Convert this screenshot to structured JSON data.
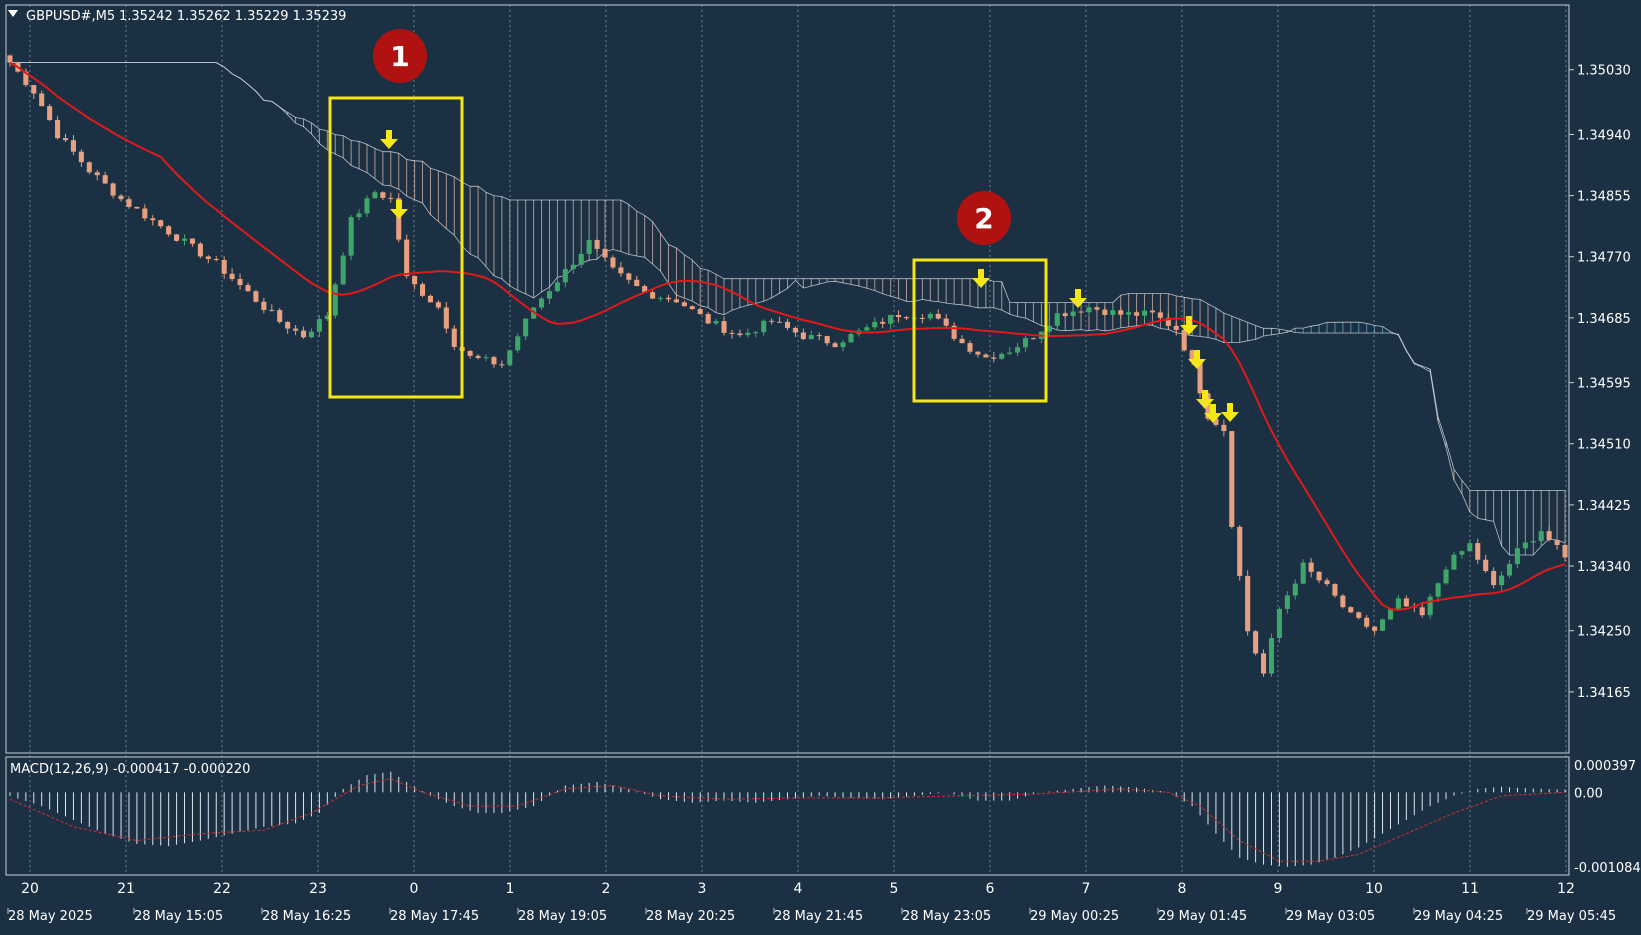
{
  "window": {
    "symbol_label": "GBPUSD#,M5",
    "ohlc_label": "1.35242 1.35262 1.35229 1.35239",
    "macd_label": "MACD(12,26,9) -0.000417 -0.000220"
  },
  "colors": {
    "background": "#1b3042",
    "bull_candle": "#3fa66b",
    "bear_candle": "#e8a080",
    "moving_average": "#e01a1a",
    "cloud_bear_hatch": "#e8c0b0",
    "cloud_bull_hatch": "#6ab0d8",
    "highlight_box": "#f5e616",
    "signal_arrow": "#f5e616",
    "callout_badge": "#b01212",
    "macd_signal": "#d03030",
    "grid": "#c8d0d8"
  },
  "annotations": {
    "badges": [
      "1",
      "2"
    ],
    "highlight_boxes": 2,
    "signal_arrows": 9
  },
  "chart_data": [
    {
      "type": "candlestick",
      "symbol": "GBPUSD#",
      "timeframe": "M5",
      "y_ticks": [
        1.3503,
        1.3494,
        1.34855,
        1.3477,
        1.34685,
        1.34595,
        1.3451,
        1.34425,
        1.3434,
        1.3425,
        1.34165
      ],
      "y_tick_labels": [
        "1.35030",
        "1.34940",
        "1.34855",
        "1.34770",
        "1.34685",
        "1.34595",
        "1.34510",
        "1.34425",
        "1.34340",
        "1.34250",
        "1.34165"
      ],
      "ylim": [
        1.3408,
        1.3512
      ],
      "hour_labels": [
        "20",
        "21",
        "22",
        "23",
        "0",
        "1",
        "2",
        "3",
        "4",
        "5",
        "6",
        "7",
        "8",
        "9",
        "10",
        "11",
        "12"
      ],
      "date_labels": [
        "28 May 2025",
        "28 May 15:05",
        "28 May 16:25",
        "28 May 17:45",
        "28 May 19:05",
        "28 May 20:25",
        "28 May 21:45",
        "28 May 23:05",
        "29 May 00:25",
        "29 May 01:45",
        "29 May 03:05",
        "29 May 04:25",
        "29 May 05:45"
      ],
      "close_path": [
        [
          0,
          1.3504
        ],
        [
          3,
          1.35
        ],
        [
          6,
          1.3494
        ],
        [
          10,
          1.3489
        ],
        [
          14,
          1.3485
        ],
        [
          18,
          1.3482
        ],
        [
          22,
          1.3479
        ],
        [
          26,
          1.3476
        ],
        [
          30,
          1.3472
        ],
        [
          34,
          1.3468
        ],
        [
          37,
          1.3466
        ],
        [
          40,
          1.3469
        ],
        [
          43,
          1.3482
        ],
        [
          46,
          1.3486
        ],
        [
          48,
          1.3485
        ],
        [
          50,
          1.3474
        ],
        [
          52,
          1.3472
        ],
        [
          54,
          1.347
        ],
        [
          56,
          1.3465
        ],
        [
          58,
          1.3463
        ],
        [
          62,
          1.3462
        ],
        [
          66,
          1.347
        ],
        [
          70,
          1.3475
        ],
        [
          73,
          1.3479
        ],
        [
          76,
          1.3475
        ],
        [
          80,
          1.3472
        ],
        [
          84,
          1.3471
        ],
        [
          88,
          1.3468
        ],
        [
          92,
          1.3466
        ],
        [
          96,
          1.3468
        ],
        [
          100,
          1.3466
        ],
        [
          104,
          1.3465
        ],
        [
          108,
          1.3467
        ],
        [
          112,
          1.3469
        ],
        [
          116,
          1.3469
        ],
        [
          120,
          1.3465
        ],
        [
          123,
          1.3463
        ],
        [
          126,
          1.3464
        ],
        [
          129,
          1.3466
        ],
        [
          132,
          1.3469
        ],
        [
          136,
          1.347
        ],
        [
          140,
          1.3469
        ],
        [
          144,
          1.3469
        ],
        [
          147,
          1.3467
        ],
        [
          149,
          1.3462
        ],
        [
          151,
          1.3455
        ],
        [
          153,
          1.3453
        ],
        [
          154,
          1.344
        ],
        [
          156,
          1.3425
        ],
        [
          158,
          1.3419
        ],
        [
          160,
          1.3428
        ],
        [
          163,
          1.3434
        ],
        [
          166,
          1.3431
        ],
        [
          169,
          1.3427
        ],
        [
          172,
          1.3425
        ],
        [
          175,
          1.3429
        ],
        [
          178,
          1.3427
        ],
        [
          181,
          1.3434
        ],
        [
          184,
          1.3437
        ],
        [
          187,
          1.3431
        ],
        [
          190,
          1.3436
        ],
        [
          193,
          1.3439
        ],
        [
          196,
          1.3435
        ]
      ]
    },
    {
      "type": "macd",
      "label": "MACD(12,26,9)",
      "y_tick_labels": [
        "0.000397",
        "0.00",
        "-0.001084"
      ],
      "ylim": [
        -0.001084,
        0.000397
      ],
      "histogram_path": [
        [
          0,
          -5e-05
        ],
        [
          4,
          -0.0002
        ],
        [
          8,
          -0.0004
        ],
        [
          12,
          -0.0006
        ],
        [
          16,
          -0.00075
        ],
        [
          20,
          -0.00078
        ],
        [
          24,
          -0.0007
        ],
        [
          28,
          -0.0006
        ],
        [
          32,
          -0.0005
        ],
        [
          36,
          -0.00045
        ],
        [
          39,
          -0.0003
        ],
        [
          42,
          5e-05
        ],
        [
          45,
          0.00025
        ],
        [
          48,
          0.0003
        ],
        [
          50,
          0.00015
        ],
        [
          53,
          -5e-05
        ],
        [
          56,
          -0.0002
        ],
        [
          59,
          -0.0003
        ],
        [
          62,
          -0.0003
        ],
        [
          66,
          -0.0002
        ],
        [
          70,
          0.0001
        ],
        [
          74,
          0.00015
        ],
        [
          78,
          5e-05
        ],
        [
          82,
          -0.0001
        ],
        [
          86,
          -0.00015
        ],
        [
          90,
          -0.00012
        ],
        [
          94,
          -0.00015
        ],
        [
          98,
          -0.0001
        ],
        [
          102,
          -5e-05
        ],
        [
          106,
          -8e-05
        ],
        [
          110,
          -0.0001
        ],
        [
          114,
          -5e-05
        ],
        [
          118,
          0.0
        ],
        [
          122,
          -0.00012
        ],
        [
          126,
          -0.00012
        ],
        [
          130,
          0.0
        ],
        [
          134,
          5e-05
        ],
        [
          138,
          0.0001
        ],
        [
          142,
          7e-05
        ],
        [
          146,
          0.0
        ],
        [
          149,
          -0.0002
        ],
        [
          152,
          -0.0006
        ],
        [
          155,
          -0.00095
        ],
        [
          158,
          -0.00105
        ],
        [
          161,
          -0.00108
        ],
        [
          164,
          -0.00105
        ],
        [
          167,
          -0.00095
        ],
        [
          170,
          -0.0008
        ],
        [
          173,
          -0.0006
        ],
        [
          176,
          -0.0004
        ],
        [
          179,
          -0.0002
        ],
        [
          182,
          -5e-05
        ],
        [
          185,
          5e-05
        ],
        [
          188,
          8e-05
        ],
        [
          191,
          6e-05
        ],
        [
          196,
          4e-05
        ]
      ],
      "signal_path": [
        [
          0,
          -0.0001
        ],
        [
          8,
          -0.0005
        ],
        [
          16,
          -0.0007
        ],
        [
          24,
          -0.0006
        ],
        [
          32,
          -0.00055
        ],
        [
          38,
          -0.0003
        ],
        [
          44,
          0.0001
        ],
        [
          48,
          0.0002
        ],
        [
          52,
          0.0
        ],
        [
          58,
          -0.0002
        ],
        [
          64,
          -0.0002
        ],
        [
          70,
          5e-05
        ],
        [
          76,
          0.0001
        ],
        [
          82,
          -5e-05
        ],
        [
          90,
          -0.0001
        ],
        [
          100,
          -8e-05
        ],
        [
          110,
          -8e-05
        ],
        [
          120,
          -5e-05
        ],
        [
          130,
          -2e-05
        ],
        [
          140,
          5e-05
        ],
        [
          146,
          0.0
        ],
        [
          150,
          -0.0002
        ],
        [
          155,
          -0.0007
        ],
        [
          160,
          -0.001
        ],
        [
          165,
          -0.001
        ],
        [
          170,
          -0.0009
        ],
        [
          176,
          -0.0006
        ],
        [
          182,
          -0.0003
        ],
        [
          188,
          -5e-05
        ],
        [
          196,
          0.0
        ]
      ]
    }
  ]
}
